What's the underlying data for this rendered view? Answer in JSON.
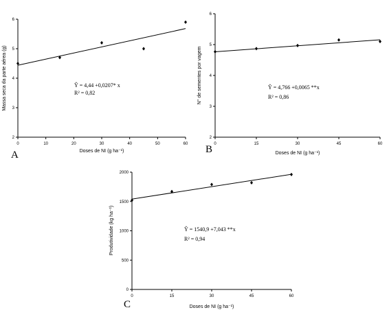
{
  "chart_data": [
    {
      "type": "scatter",
      "panel_label": "A",
      "xlabel": "Doses de NI (g ha⁻¹)",
      "ylabel": "Massa seca da parte aérea (g)",
      "xlim": [
        0,
        60
      ],
      "ylim": [
        2,
        6
      ],
      "xticks": [
        0,
        10,
        20,
        30,
        40,
        50,
        60
      ],
      "yticks": [
        2,
        3,
        4,
        5,
        6
      ],
      "points": [
        {
          "x": 0,
          "y": 4.5
        },
        {
          "x": 15,
          "y": 4.7
        },
        {
          "x": 30,
          "y": 5.2
        },
        {
          "x": 45,
          "y": 5.0
        },
        {
          "x": 60,
          "y": 5.9
        }
      ],
      "fit": {
        "intercept": 4.44,
        "slope": 0.0207
      },
      "equation": "Ŷ = 4,44 +0,0207* x",
      "r2": "R² = 0,82"
    },
    {
      "type": "scatter",
      "panel_label": "B",
      "xlabel": "Doses de NI (g ha⁻¹)",
      "ylabel": "N° de sementes por vagem",
      "xlim": [
        0,
        60
      ],
      "ylim": [
        2,
        6
      ],
      "xticks": [
        0,
        15,
        30,
        45,
        60
      ],
      "yticks": [
        2,
        3,
        4,
        5,
        6
      ],
      "points": [
        {
          "x": 0,
          "y": 4.77
        },
        {
          "x": 15,
          "y": 4.87
        },
        {
          "x": 30,
          "y": 4.97
        },
        {
          "x": 45,
          "y": 5.15
        },
        {
          "x": 60,
          "y": 5.1
        }
      ],
      "fit": {
        "intercept": 4.766,
        "slope": 0.0065
      },
      "equation": "Ŷ = 4,766 +0,0065 **x",
      "r2": "R² = 0,86"
    },
    {
      "type": "scatter",
      "panel_label": "C",
      "xlabel": "Doses de NI (g ha⁻¹)",
      "ylabel": "Produtividade (kg ha⁻¹)",
      "xlim": [
        0,
        60
      ],
      "ylim": [
        0,
        2000
      ],
      "xticks": [
        0,
        15,
        30,
        45,
        60
      ],
      "yticks": [
        0,
        500,
        1000,
        1500,
        2000
      ],
      "points": [
        {
          "x": 0,
          "y": 1520
        },
        {
          "x": 15,
          "y": 1670
        },
        {
          "x": 30,
          "y": 1790
        },
        {
          "x": 45,
          "y": 1820
        },
        {
          "x": 60,
          "y": 1960
        }
      ],
      "fit": {
        "intercept": 1540.9,
        "slope": 7.043
      },
      "equation": "Ŷ = 1540,9 +7,043 **x",
      "r2": "R² = 0,94"
    }
  ]
}
